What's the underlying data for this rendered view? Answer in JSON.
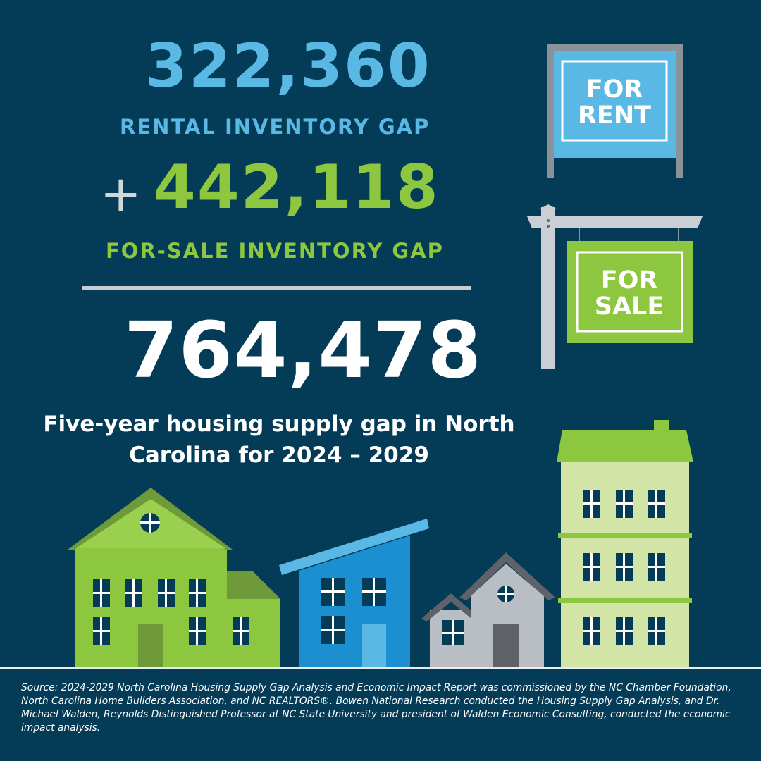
{
  "stats": {
    "rental_number": "322,360",
    "rental_label": "RENTAL INVENTORY GAP",
    "plus": "+",
    "forsale_number": "442,118",
    "forsale_label": "FOR-SALE INVENTORY GAP",
    "total_number": "764,478",
    "caption": "Five-year housing supply gap in North Carolina for 2024 – 2029"
  },
  "signs": {
    "rent_line1": "FOR",
    "rent_line2": "RENT",
    "sale_line1": "FOR",
    "sale_line2": "SALE"
  },
  "source": "Source: 2024-2029 North Carolina Housing Supply Gap Analysis and Economic Impact Report was commissioned by the NC Chamber Foundation, North Carolina Home Builders Association, and NC REALTORS®. Bowen National Research conducted the Housing Supply Gap Analysis, and Dr. Michael Walden, Reynolds Distinguished Professor at NC State University and president of Walden Economic Consulting, conducted the economic impact analysis.",
  "colors": {
    "background": "#043c57",
    "rental_blue": "#5ab8e4",
    "forsale_green": "#8dc63f",
    "total_white": "#ffffff",
    "divider_gray": "#c6ccd1"
  }
}
